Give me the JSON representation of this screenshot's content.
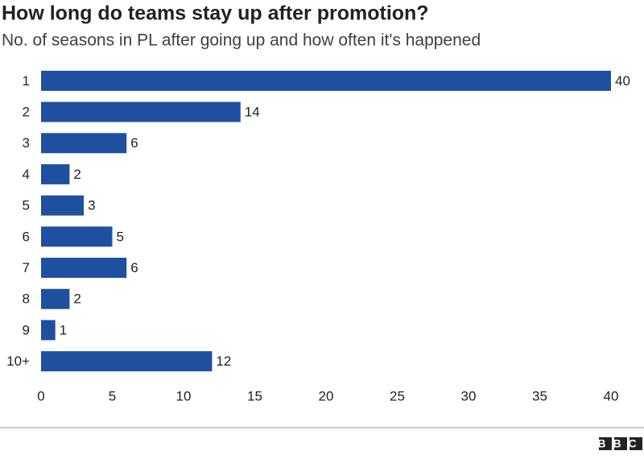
{
  "chart_data": {
    "type": "barh",
    "title": "How long do teams stay up after promotion?",
    "subtitle": "No. of seasons in PL after going up and how often it's happened",
    "categories": [
      "1",
      "2",
      "3",
      "4",
      "5",
      "6",
      "7",
      "8",
      "9",
      "10+"
    ],
    "values": [
      40,
      14,
      6,
      2,
      3,
      5,
      6,
      2,
      1,
      12
    ],
    "color": "#1f50a0",
    "xlim": [
      0,
      40
    ],
    "xticks": [
      0,
      5,
      10,
      15,
      20,
      25,
      30,
      35,
      40
    ],
    "grid": false
  },
  "footer": {
    "logo": "BBC"
  }
}
